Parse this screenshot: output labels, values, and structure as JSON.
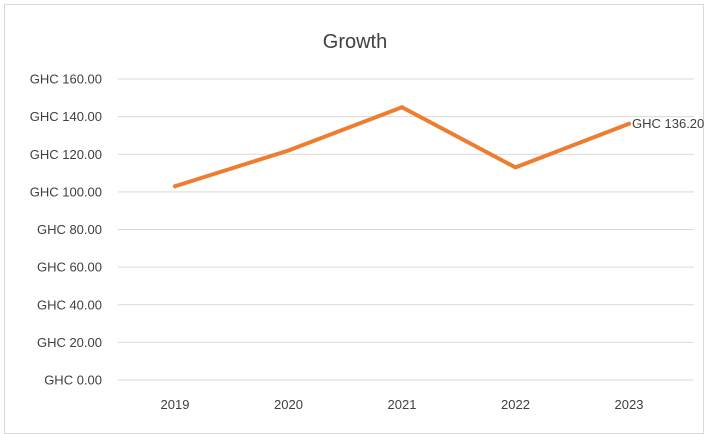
{
  "chart_data": {
    "type": "line",
    "title": "Growth",
    "xlabel": "",
    "ylabel": "",
    "categories": [
      "2019",
      "2020",
      "2021",
      "2022",
      "2023"
    ],
    "series": [
      {
        "values": [
          103.0,
          122.0,
          145.0,
          113.0,
          136.2
        ],
        "color": "#ed7d31"
      }
    ],
    "ylim": [
      0,
      160
    ],
    "y_ticks": [
      0,
      20,
      40,
      60,
      80,
      100,
      120,
      140,
      160
    ],
    "y_tick_labels": [
      "GHC 0.00",
      "GHC 20.00",
      "GHC 40.00",
      "GHC 60.00",
      "GHC 80.00",
      "GHC 100.00",
      "GHC 120.00",
      "GHC 140.00",
      "GHC 160.00"
    ],
    "data_labels": [
      {
        "index": 4,
        "text": "GHC 136.20"
      }
    ],
    "grid": true,
    "legend": "none",
    "colors": {
      "line": "#ed7d31",
      "grid": "#d9d9d9",
      "text": "#404040"
    }
  }
}
